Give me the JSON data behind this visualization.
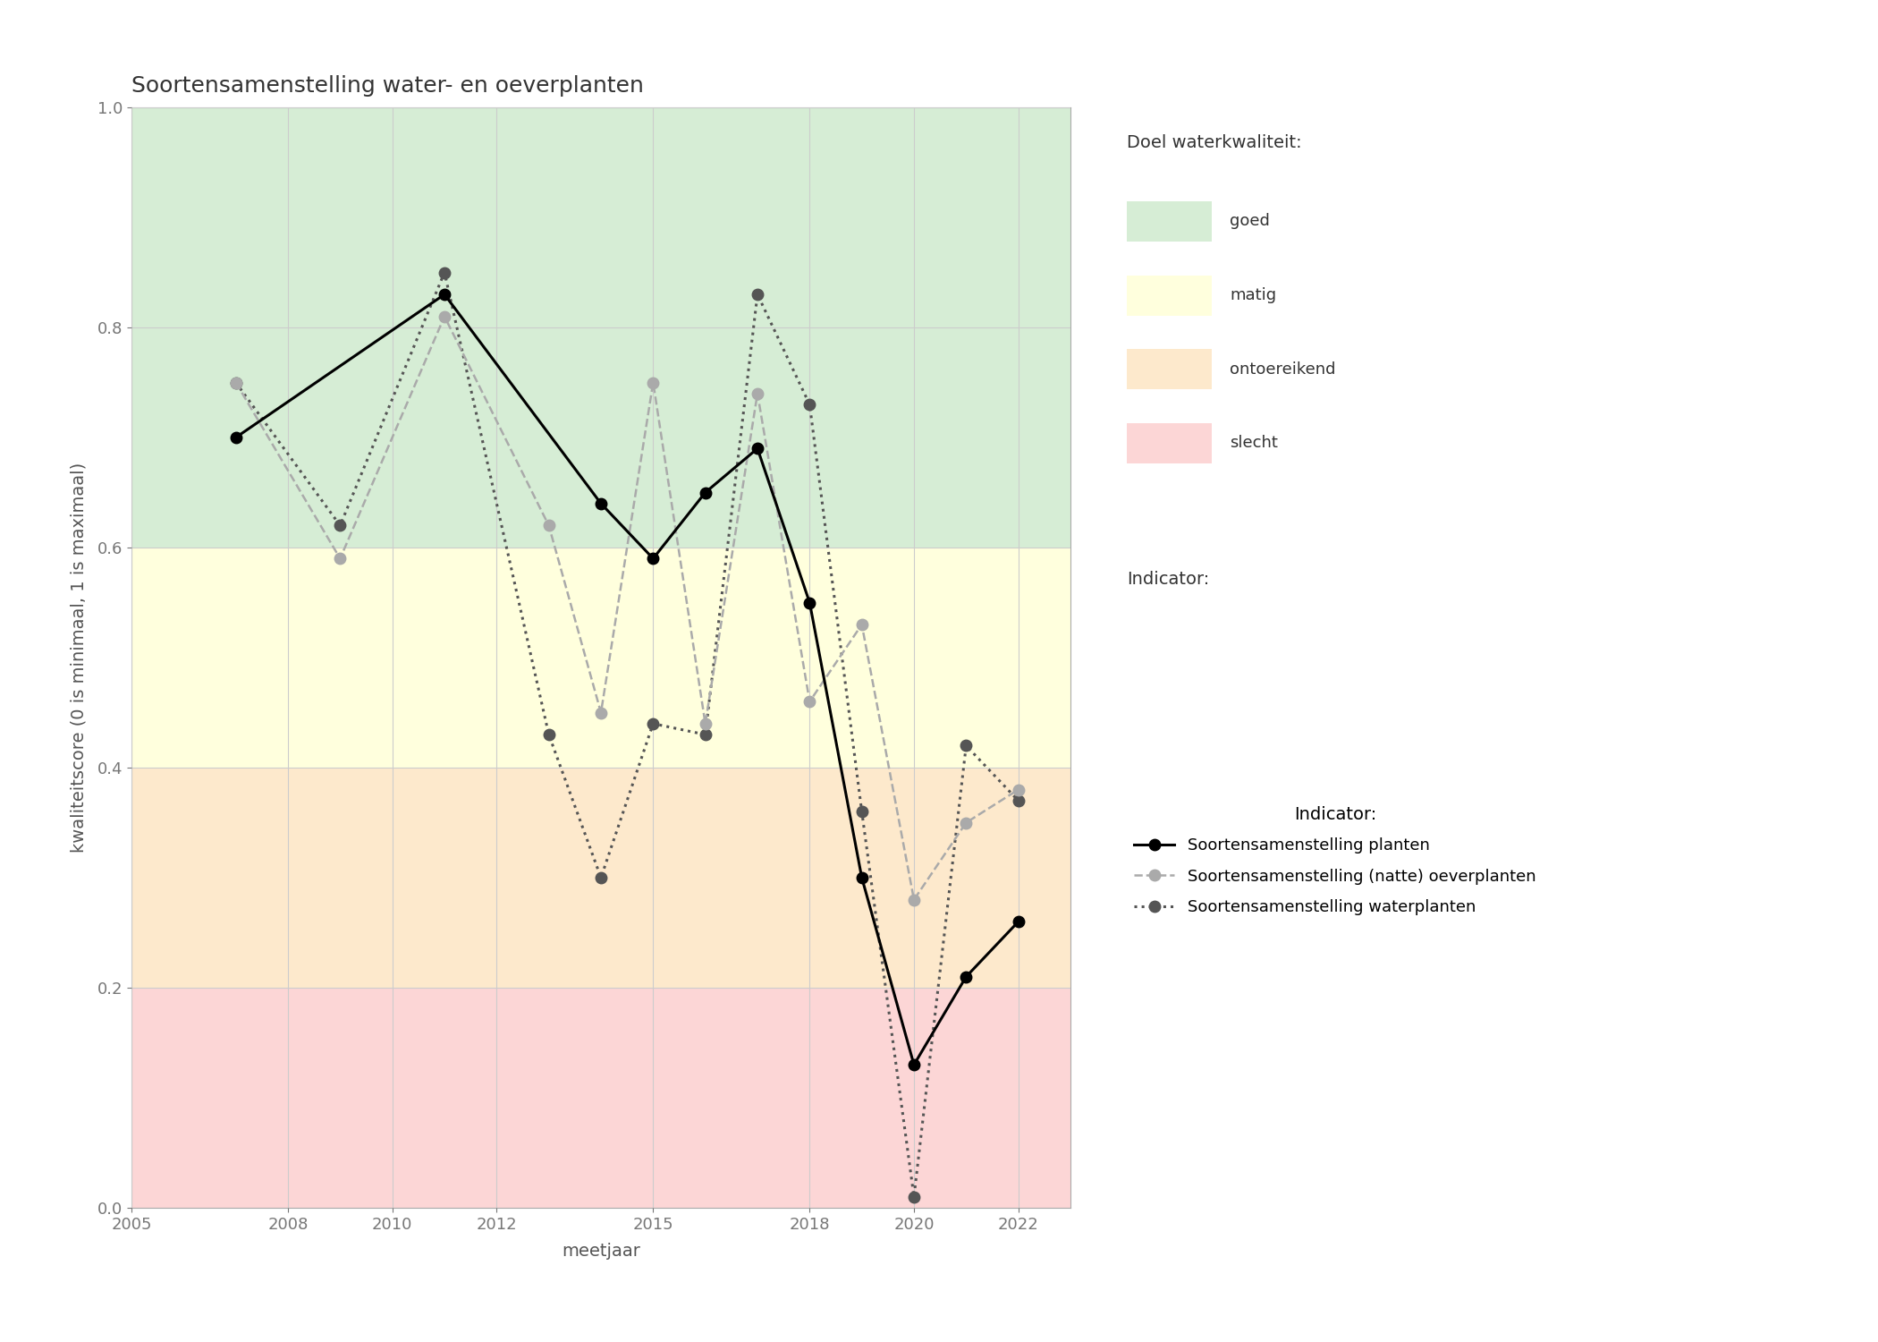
{
  "title": "Soortensamenstelling water- en oeverplanten",
  "xlabel": "meetjaar",
  "ylabel": "kwaliteitscore (0 is minimaal, 1 is maximaal)",
  "xlim": [
    2005,
    2023
  ],
  "ylim": [
    0.0,
    1.0
  ],
  "xticks": [
    2005,
    2008,
    2010,
    2012,
    2015,
    2018,
    2020,
    2022
  ],
  "yticks": [
    0.0,
    0.2,
    0.4,
    0.6,
    0.8,
    1.0
  ],
  "quality_bands": {
    "goed": {
      "ymin": 0.6,
      "ymax": 1.0,
      "color": "#d6edd5"
    },
    "matig": {
      "ymin": 0.4,
      "ymax": 0.6,
      "color": "#ffffdd"
    },
    "ontoereikend": {
      "ymin": 0.2,
      "ymax": 0.4,
      "color": "#fde9cc"
    },
    "slecht": {
      "ymin": 0.0,
      "ymax": 0.2,
      "color": "#fcd6d6"
    }
  },
  "series_planten": {
    "x": [
      2007,
      2011,
      2014,
      2015,
      2016,
      2017,
      2018,
      2019,
      2020,
      2021,
      2022
    ],
    "y": [
      0.7,
      0.83,
      0.64,
      0.59,
      0.65,
      0.69,
      0.55,
      0.3,
      0.13,
      0.21,
      0.26
    ],
    "color": "#000000",
    "linestyle": "-",
    "linewidth": 2.2,
    "marker": "o",
    "markersize": 9,
    "label": "Soortensamenstelling planten",
    "zorder": 5
  },
  "series_oeverplanten": {
    "x": [
      2007,
      2009,
      2011,
      2013,
      2014,
      2015,
      2016,
      2017,
      2018,
      2019,
      2020,
      2021,
      2022
    ],
    "y": [
      0.75,
      0.59,
      0.81,
      0.62,
      0.45,
      0.75,
      0.44,
      0.74,
      0.46,
      0.53,
      0.28,
      0.35,
      0.38
    ],
    "color": "#aaaaaa",
    "linestyle": "--",
    "linewidth": 1.8,
    "marker": "o",
    "markersize": 9,
    "label": "Soortensamenstelling (natte) oeverplanten",
    "zorder": 4
  },
  "series_waterplanten": {
    "x": [
      2007,
      2009,
      2011,
      2013,
      2014,
      2015,
      2016,
      2017,
      2018,
      2019,
      2020,
      2021,
      2022
    ],
    "y": [
      0.75,
      0.62,
      0.85,
      0.43,
      0.3,
      0.44,
      0.43,
      0.83,
      0.73,
      0.36,
      0.01,
      0.42,
      0.37
    ],
    "color": "#555555",
    "linestyle": ":",
    "linewidth": 2.2,
    "marker": "o",
    "markersize": 9,
    "label": "Soortensamenstelling waterplanten",
    "zorder": 3
  },
  "legend_title_doel": "Doel waterkwaliteit:",
  "legend_title_indicator": "Indicator:",
  "grid_color": "#cccccc",
  "grid_linewidth": 0.8,
  "title_fontsize": 18,
  "axis_label_fontsize": 14,
  "tick_fontsize": 13,
  "legend_fontsize": 13
}
